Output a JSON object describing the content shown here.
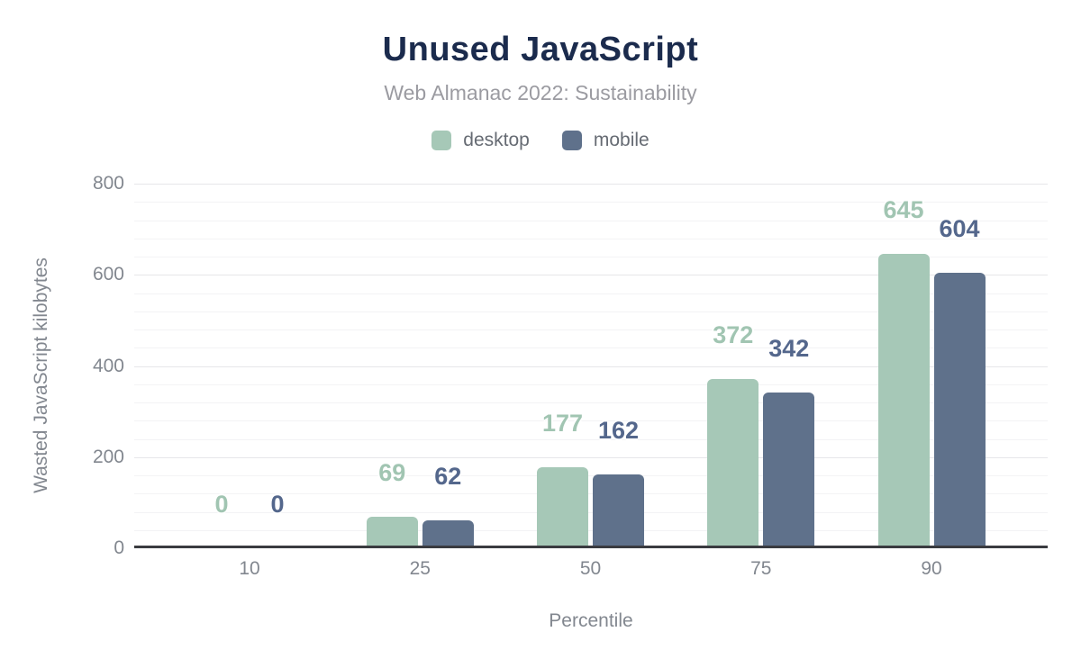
{
  "header": {
    "title": "Unused JavaScript",
    "subtitle": "Web Almanac 2022: Sustainability"
  },
  "chart_data": {
    "type": "bar",
    "title": "Unused JavaScript",
    "subtitle": "Web Almanac 2022: Sustainability",
    "categories": [
      "10",
      "25",
      "50",
      "75",
      "90"
    ],
    "series": [
      {
        "name": "desktop",
        "color": "#a6c8b7",
        "label_color": "#a1c5b2",
        "values": [
          0,
          69,
          177,
          372,
          645
        ]
      },
      {
        "name": "mobile",
        "color": "#5f718b",
        "label_color": "#54678c",
        "values": [
          0,
          62,
          162,
          342,
          604
        ]
      }
    ],
    "xlabel": "Percentile",
    "ylabel": "Wasted JavaScript kilobytes",
    "ylim": [
      0,
      800
    ],
    "y_major_ticks": [
      0,
      200,
      400,
      600,
      800
    ],
    "y_minor_step": 40,
    "grid": true,
    "legend_position": "top",
    "value_labels": true
  },
  "colors": {
    "background": "#ffffff",
    "title": "#1b2b4d",
    "subtitle": "#9b9ba1",
    "legend_text": "#666b73",
    "axis_text": "#82878f",
    "axis_line": "#3a3b40",
    "grid_major": "#e6e6e9",
    "grid_minor": "#f3f3f5"
  }
}
